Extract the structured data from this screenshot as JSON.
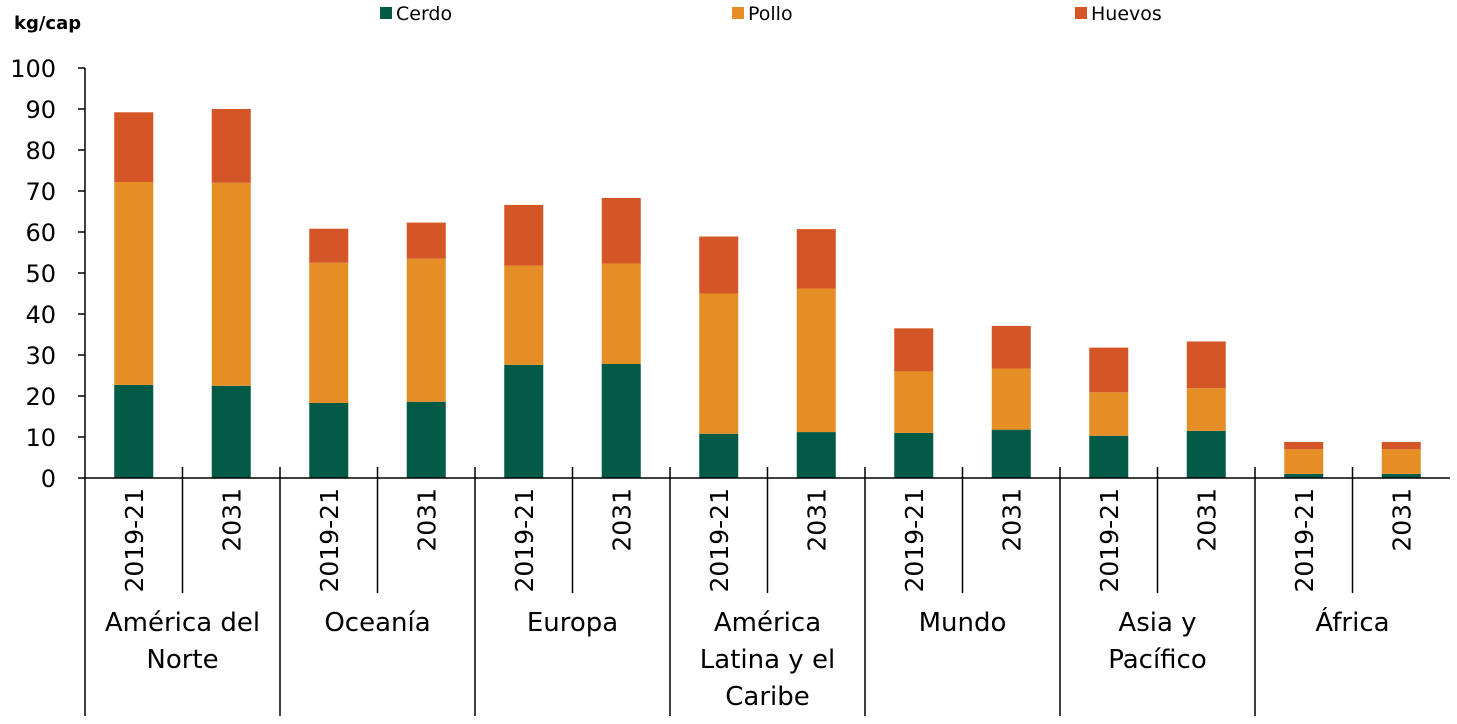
{
  "chart_data": {
    "type": "bar",
    "stacked": true,
    "ylabel": "kg/cap",
    "ylim": [
      0,
      100
    ],
    "yticks": [
      0,
      10,
      20,
      30,
      40,
      50,
      60,
      70,
      80,
      90,
      100
    ],
    "groups": [
      {
        "label": [
          "América del",
          "Norte"
        ],
        "periods": [
          "2019-21",
          "2031"
        ]
      },
      {
        "label": [
          "Oceanía"
        ],
        "periods": [
          "2019-21",
          "2031"
        ]
      },
      {
        "label": [
          "Europa"
        ],
        "periods": [
          "2019-21",
          "2031"
        ]
      },
      {
        "label": [
          "América",
          "Latina y el",
          "Caribe"
        ],
        "periods": [
          "2019-21",
          "2031"
        ]
      },
      {
        "label": [
          "Mundo"
        ],
        "periods": [
          "2019-21",
          "2031"
        ]
      },
      {
        "label": [
          "Asia y",
          "Pacífico"
        ],
        "periods": [
          "2019-21",
          "2031"
        ]
      },
      {
        "label": [
          "África"
        ],
        "periods": [
          "2019-21",
          "2031"
        ]
      }
    ],
    "series": [
      {
        "name": "Cerdo",
        "color": "#005a46",
        "values": [
          22.7,
          22.5,
          18.3,
          18.6,
          27.6,
          27.8,
          10.8,
          11.2,
          11.0,
          11.8,
          10.3,
          11.5,
          1.0,
          1.0
        ]
      },
      {
        "name": "Pollo",
        "color": "#e58e26",
        "values": [
          49.5,
          49.5,
          34.2,
          34.9,
          24.2,
          24.5,
          34.2,
          35.0,
          15.0,
          14.9,
          10.6,
          10.4,
          6.0,
          6.0
        ]
      },
      {
        "name": "Huevos",
        "color": "#d45526",
        "values": [
          17.0,
          18.0,
          8.3,
          8.8,
          14.8,
          16.0,
          13.9,
          14.5,
          10.5,
          10.4,
          10.9,
          11.4,
          1.8,
          1.8
        ]
      }
    ]
  }
}
